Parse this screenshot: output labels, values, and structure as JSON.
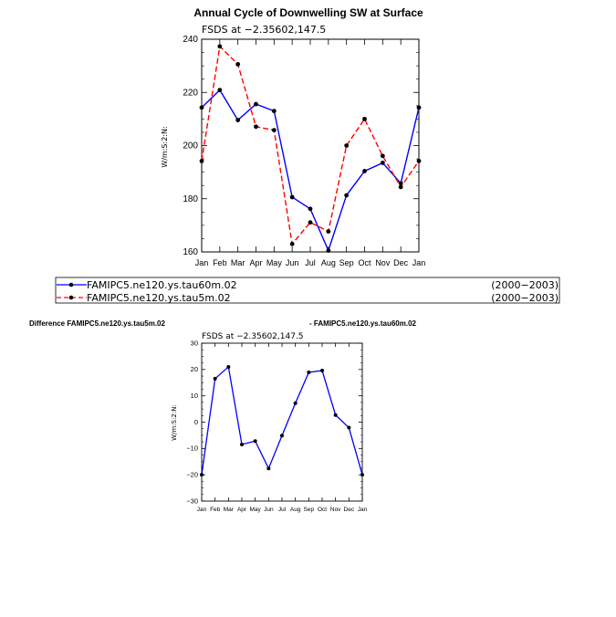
{
  "colors": {
    "series1": "#0000ff",
    "series2": "#ff0000",
    "marker": "#000000"
  },
  "top": {
    "title": "Annual Cycle of Downwelling SW at Surface",
    "subtitle": "FSDS at −2.35602,147.5",
    "ylabel": "W/m:S:2:N:"
  },
  "legend": {
    "entries": [
      {
        "name": "FAMIPC5.ne120.ys.tau60m.02",
        "period": "(2000−2003)"
      },
      {
        "name": "FAMIPC5.ne120.ys.tau5m.02",
        "period": "(2000−2003)"
      }
    ]
  },
  "bottom": {
    "left_title": "Difference FAMIPC5.ne120.ys.tau5m.02",
    "right_title": "- FAMIPC5.ne120.ys.tau60m.02",
    "subtitle": "FSDS at −2.35602,147.5",
    "ylabel": "W/m:S:2:N:"
  },
  "chart_data": [
    {
      "type": "line",
      "title": "Annual Cycle of Downwelling SW at Surface",
      "subtitle": "FSDS at −2.35602,147.5",
      "ylabel": "W/m:S:2:N:",
      "categories": [
        "Jan",
        "Feb",
        "Mar",
        "Apr",
        "May",
        "Jun",
        "Jul",
        "Aug",
        "Sep",
        "Oct",
        "Nov",
        "Dec",
        "Jan"
      ],
      "ylim": [
        160,
        240
      ],
      "yticks": [
        160,
        180,
        200,
        220,
        240
      ],
      "series": [
        {
          "name": "FAMIPC5.ne120.ys.tau60m.02",
          "style": "solid",
          "color": "#0000ff",
          "values": [
            214.3,
            220.9,
            209.6,
            215.6,
            213.0,
            180.6,
            176.2,
            160.5,
            181.3,
            190.4,
            193.5,
            185.8,
            214.3
          ]
        },
        {
          "name": "FAMIPC5.ne120.ys.tau5m.02",
          "style": "dashed",
          "color": "#ff0000",
          "values": [
            194.2,
            237.3,
            230.6,
            207.1,
            205.8,
            163.0,
            171.1,
            167.7,
            200.0,
            210.0,
            196.1,
            184.4,
            194.2
          ]
        }
      ]
    },
    {
      "type": "line",
      "subtitle": "FSDS at −2.35602,147.5",
      "ylabel": "W/m:S:2:N:",
      "categories": [
        "Jan",
        "Feb",
        "Mar",
        "Apr",
        "May",
        "Jun",
        "Jul",
        "Aug",
        "Sep",
        "Oct",
        "Nov",
        "Dec",
        "Jan"
      ],
      "ylim": [
        -30,
        30
      ],
      "yticks": [
        -30,
        -20,
        -10,
        0,
        10,
        20,
        30
      ],
      "ytick_labels": [
        "−30",
        "−20",
        "−10",
        "0",
        "10",
        "20",
        "30"
      ],
      "series": [
        {
          "style": "solid",
          "color": "#0000ff",
          "values": [
            -20.0,
            16.5,
            21.0,
            -8.5,
            -7.2,
            -17.6,
            -5.1,
            7.2,
            18.9,
            19.6,
            2.7,
            -2.1,
            -20.0
          ]
        }
      ]
    }
  ]
}
